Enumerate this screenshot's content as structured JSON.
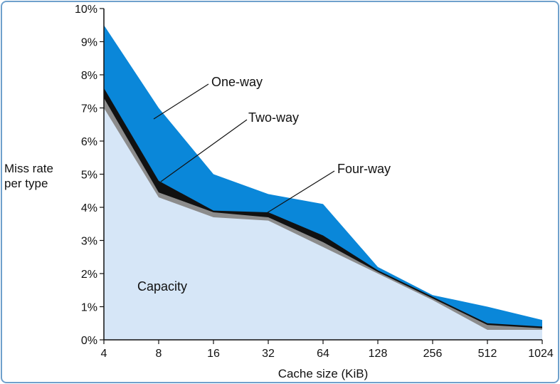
{
  "chart_data": {
    "type": "area",
    "title": "",
    "xlabel": "Cache size (KiB)",
    "ylabel_lines": [
      "Miss rate",
      "per type"
    ],
    "categories": [
      "4",
      "8",
      "16",
      "32",
      "64",
      "128",
      "256",
      "512",
      "1024"
    ],
    "ylim": [
      0,
      10
    ],
    "y_ticks": [
      "0%",
      "1%",
      "2%",
      "3%",
      "4%",
      "5%",
      "6%",
      "7%",
      "8%",
      "9%",
      "10%"
    ],
    "series": [
      {
        "name": "Capacity",
        "color": "#d6e6f7",
        "values": [
          7.0,
          4.3,
          3.7,
          3.6,
          2.8,
          2.0,
          1.2,
          0.3,
          0.3
        ]
      },
      {
        "name": "Four-way",
        "color": "#8c8c8c",
        "values": [
          7.3,
          4.45,
          3.85,
          3.7,
          2.95,
          2.05,
          1.25,
          0.45,
          0.35
        ]
      },
      {
        "name": "Two-way",
        "color": "#111111",
        "values": [
          7.6,
          4.8,
          3.9,
          3.85,
          3.15,
          2.1,
          1.3,
          0.5,
          0.4
        ]
      },
      {
        "name": "One-way",
        "color": "#0a87d9",
        "values": [
          9.5,
          7.0,
          5.0,
          4.4,
          4.1,
          2.2,
          1.35,
          1.0,
          0.6
        ]
      }
    ],
    "annotations": {
      "capacity": "Capacity",
      "one_way": "One-way",
      "two_way": "Two-way",
      "four_way": "Four-way"
    },
    "frame_color": "#6fa0cc",
    "axis_color": "#111111"
  }
}
